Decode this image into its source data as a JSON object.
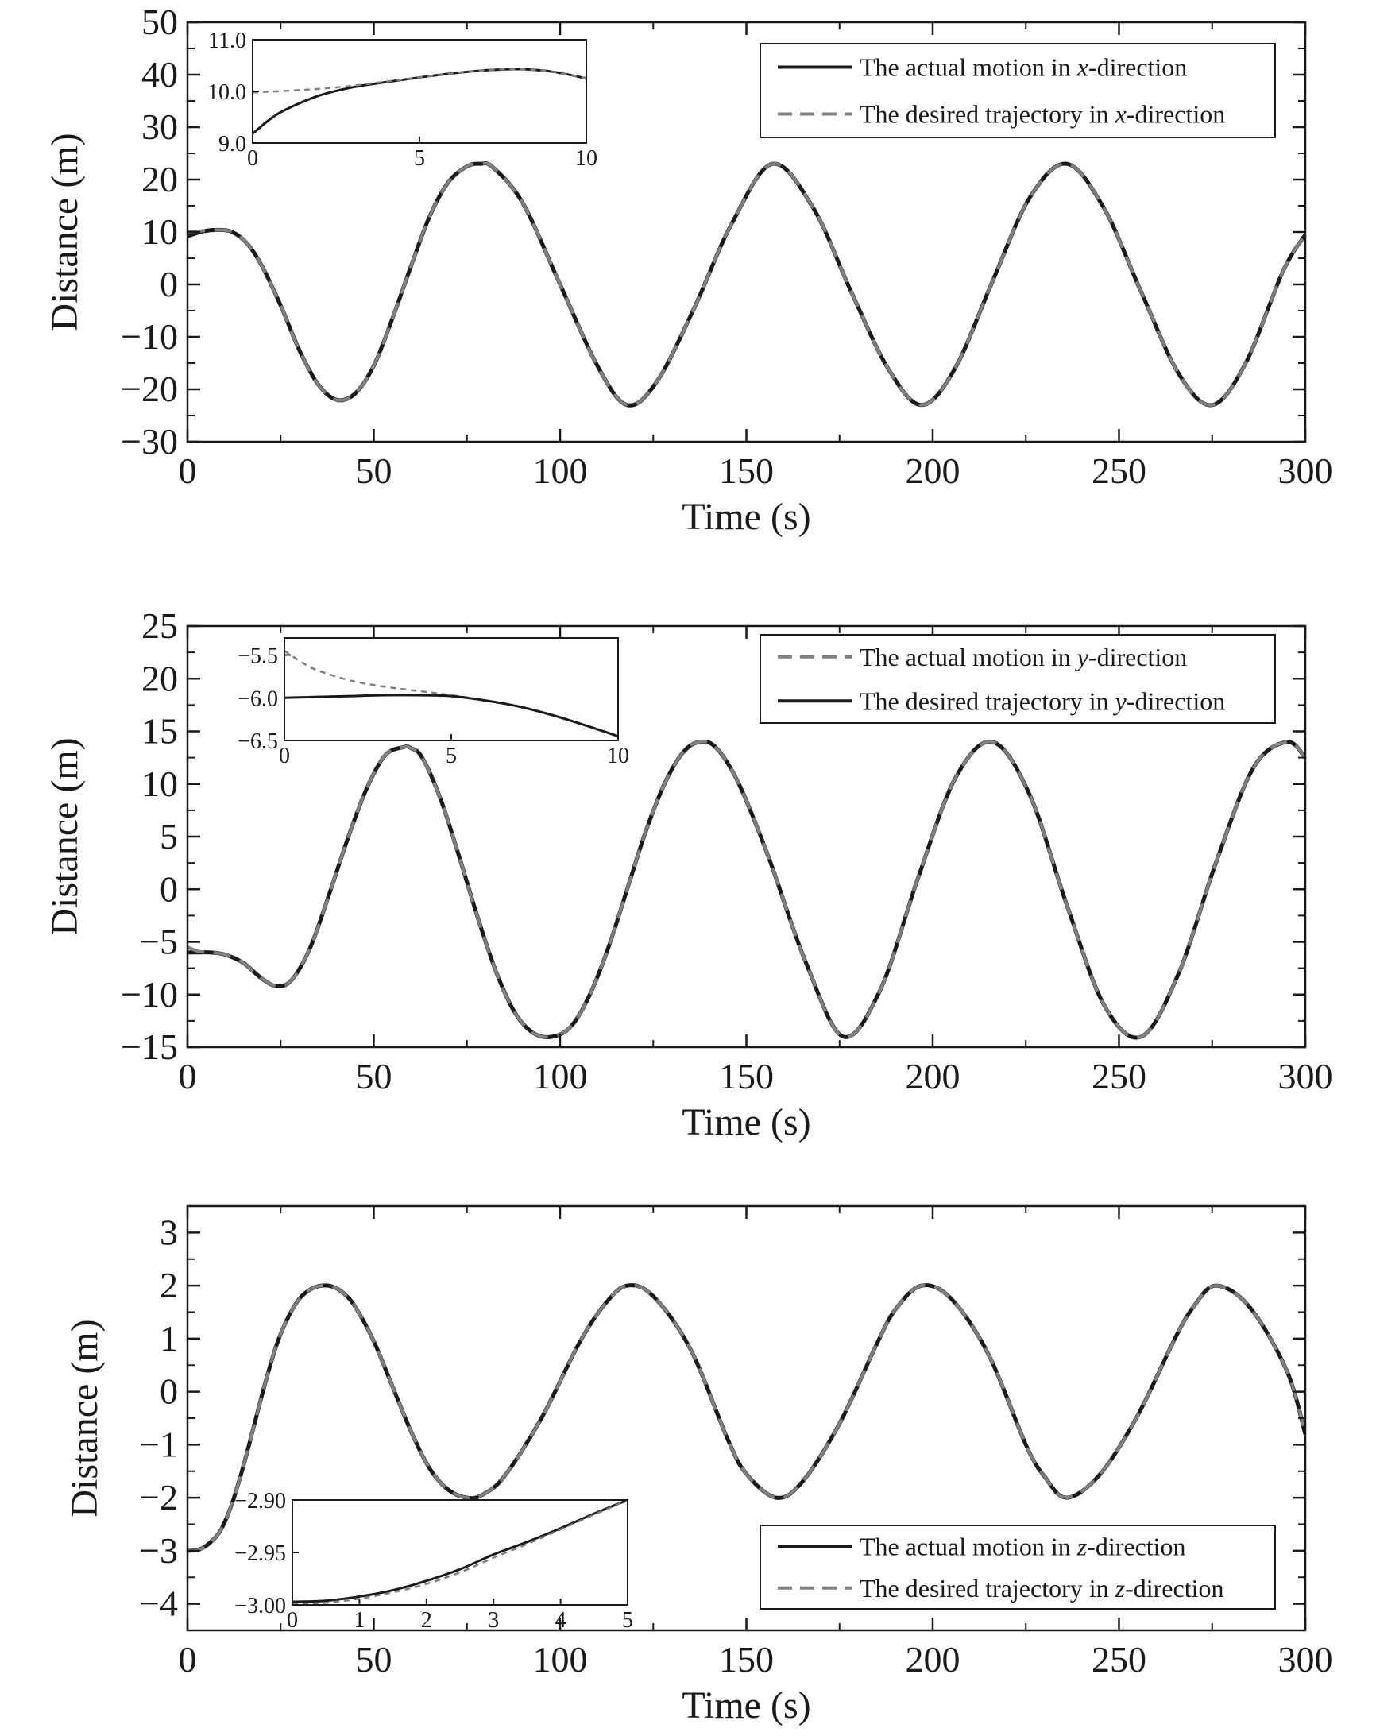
{
  "colors": {
    "actual": "#1a1a1a",
    "desired": "#808080",
    "axis": "#1a1a1a"
  },
  "chart_data": [
    {
      "type": "line",
      "xlabel": "Time (s)",
      "ylabel": "Distance (m)",
      "xlim": [
        0,
        300
      ],
      "ylim": [
        -30,
        50
      ],
      "xticks": [
        0,
        50,
        100,
        150,
        200,
        250,
        300
      ],
      "yticks": [
        -30,
        -20,
        -10,
        0,
        10,
        20,
        30,
        40,
        50
      ],
      "xtick_labels": [
        "0",
        "50",
        "100",
        "150",
        "200",
        "250",
        "300"
      ],
      "ytick_labels": [
        "−30",
        "−20",
        "−10",
        "0",
        "10",
        "20",
        "30",
        "40",
        "50"
      ],
      "legend_position": "top-right",
      "series": [
        {
          "name": "The actual motion in x-direction",
          "legend_prefix": "The actual motion in ",
          "legend_var": "x",
          "legend_suffix": "-direction",
          "style": "solid",
          "x": [
            0,
            4,
            8,
            12,
            16,
            20,
            25,
            30,
            35,
            40,
            45,
            50,
            55,
            60,
            65,
            70,
            75,
            78.5,
            82,
            90,
            100,
            110,
            118,
            126,
            136,
            146,
            157,
            168,
            178,
            188,
            197,
            206,
            216,
            226,
            236,
            246,
            256,
            266,
            275,
            284,
            294,
            300
          ],
          "y": [
            9.2,
            10.1,
            10.4,
            10.0,
            7.8,
            3.5,
            -4.0,
            -12.5,
            -19.0,
            -22.0,
            -20.8,
            -15.5,
            -6.5,
            3.5,
            13.0,
            19.5,
            22.5,
            23.0,
            22.3,
            15.5,
            0.0,
            -15.5,
            -23.0,
            -18.5,
            -4.5,
            11.5,
            23.0,
            14.5,
            -1.2,
            -16.0,
            -23.0,
            -16.0,
            0.5,
            16.5,
            23.0,
            14.5,
            -1.5,
            -17.0,
            -23.0,
            -15.0,
            2.5,
            9.5
          ]
        },
        {
          "name": "The desired trajectory in x-direction",
          "legend_prefix": "The desired trajectory in ",
          "legend_var": "x",
          "legend_suffix": "-direction",
          "style": "dashed",
          "x": [
            0,
            4,
            8,
            12,
            16,
            20,
            25,
            30,
            35,
            40,
            45,
            50,
            55,
            60,
            65,
            70,
            75,
            78.5,
            82,
            90,
            100,
            110,
            118,
            126,
            136,
            146,
            157,
            168,
            178,
            188,
            197,
            206,
            216,
            226,
            236,
            246,
            256,
            266,
            275,
            284,
            294,
            300
          ],
          "y": [
            10.0,
            10.2,
            10.4,
            10.0,
            7.8,
            3.5,
            -4.0,
            -12.5,
            -19.0,
            -22.0,
            -20.8,
            -15.5,
            -6.5,
            3.5,
            13.0,
            19.5,
            22.5,
            23.0,
            22.3,
            15.5,
            0.0,
            -15.5,
            -23.0,
            -18.5,
            -4.5,
            11.5,
            23.0,
            14.5,
            -1.2,
            -16.0,
            -23.0,
            -16.0,
            0.5,
            16.5,
            23.0,
            14.5,
            -1.5,
            -17.0,
            -23.0,
            -15.0,
            2.5,
            9.5
          ]
        }
      ],
      "inset": {
        "xlim": [
          0,
          10
        ],
        "ylim": [
          9.0,
          11.0
        ],
        "xticks": [
          0,
          5,
          10
        ],
        "yticks": [
          9.0,
          10.0,
          11.0
        ],
        "xtick_labels": [
          "0",
          "5",
          "10"
        ],
        "ytick_labels": [
          "9.0",
          "10.0",
          "11.0"
        ],
        "series": [
          {
            "style": "solid",
            "x": [
              0,
              0.5,
              1,
              2,
              3,
              4,
              5,
              6,
              7,
              8,
              9,
              10
            ],
            "y": [
              9.18,
              9.45,
              9.65,
              9.92,
              10.08,
              10.18,
              10.27,
              10.35,
              10.41,
              10.43,
              10.38,
              10.25
            ]
          },
          {
            "style": "dashed",
            "x": [
              0,
              1,
              2,
              3,
              4,
              5,
              6,
              7,
              8,
              9,
              10
            ],
            "y": [
              9.98,
              10.01,
              10.05,
              10.11,
              10.19,
              10.27,
              10.35,
              10.41,
              10.43,
              10.38,
              10.25
            ]
          }
        ]
      }
    },
    {
      "type": "line",
      "xlabel": "Time (s)",
      "ylabel": "Distance (m)",
      "xlim": [
        0,
        300
      ],
      "ylim": [
        -15,
        25
      ],
      "xticks": [
        0,
        50,
        100,
        150,
        200,
        250,
        300
      ],
      "yticks": [
        -15,
        -10,
        -5,
        0,
        5,
        10,
        15,
        20,
        25
      ],
      "xtick_labels": [
        "0",
        "50",
        "100",
        "150",
        "200",
        "250",
        "300"
      ],
      "ytick_labels": [
        "−15",
        "−10",
        "−5",
        "0",
        "5",
        "10",
        "15",
        "20",
        "25"
      ],
      "legend_position": "top-right",
      "series": [
        {
          "name": "The actual motion in y-direction",
          "legend_prefix": "The actual motion in ",
          "legend_var": "y",
          "legend_suffix": "-direction",
          "style": "dashed",
          "x": [
            0,
            3,
            6,
            10,
            15,
            20,
            24,
            28,
            33,
            38,
            43,
            48,
            53,
            58,
            60,
            63,
            68,
            73,
            78,
            83,
            88,
            93,
            98,
            103,
            108,
            113,
            118,
            123,
            128,
            133,
            137.5,
            142,
            148,
            156,
            166,
            176,
            186,
            196,
            206,
            216,
            226,
            236,
            246,
            256,
            266,
            276,
            286,
            295,
            300
          ],
          "y": [
            -5.5,
            -5.9,
            -6.0,
            -6.2,
            -7.0,
            -8.5,
            -9.2,
            -8.6,
            -5.5,
            -0.5,
            4.8,
            9.5,
            12.7,
            13.5,
            13.4,
            12.5,
            8.5,
            3.0,
            -2.8,
            -8.0,
            -11.8,
            -13.7,
            -14.0,
            -13.0,
            -10.0,
            -5.5,
            0.0,
            5.5,
            10.0,
            13.0,
            14.0,
            13.4,
            10.0,
            3.0,
            -7.0,
            -14.0,
            -9.5,
            1.0,
            10.5,
            14.0,
            9.0,
            -1.5,
            -11.0,
            -14.0,
            -8.0,
            2.5,
            11.5,
            14.0,
            12.5
          ]
        },
        {
          "name": "The desired trajectory in y-direction",
          "legend_prefix": "The desired trajectory in ",
          "legend_var": "y",
          "legend_suffix": "-direction",
          "style": "solid",
          "x": [
            0,
            3,
            6,
            10,
            15,
            20,
            24,
            28,
            33,
            38,
            43,
            48,
            53,
            58,
            60,
            63,
            68,
            73,
            78,
            83,
            88,
            93,
            98,
            103,
            108,
            113,
            118,
            123,
            128,
            133,
            137.5,
            142,
            148,
            156,
            166,
            176,
            186,
            196,
            206,
            216,
            226,
            236,
            246,
            256,
            266,
            276,
            286,
            295,
            300
          ],
          "y": [
            -6.0,
            -6.0,
            -6.0,
            -6.2,
            -7.0,
            -8.5,
            -9.2,
            -8.6,
            -5.5,
            -0.5,
            4.8,
            9.5,
            12.7,
            13.5,
            13.4,
            12.5,
            8.5,
            3.0,
            -2.8,
            -8.0,
            -11.8,
            -13.7,
            -14.0,
            -13.0,
            -10.0,
            -5.5,
            0.0,
            5.5,
            10.0,
            13.0,
            14.0,
            13.4,
            10.0,
            3.0,
            -7.0,
            -14.0,
            -9.5,
            1.0,
            10.5,
            14.0,
            9.0,
            -1.5,
            -11.0,
            -14.0,
            -8.0,
            2.5,
            11.5,
            14.0,
            12.5
          ]
        }
      ],
      "inset": {
        "xlim": [
          0,
          10
        ],
        "ylim": [
          -6.5,
          -5.3
        ],
        "xticks": [
          0,
          5,
          10
        ],
        "yticks": [
          -6.5,
          -6.0,
          -5.5
        ],
        "xtick_labels": [
          "0",
          "5",
          "10"
        ],
        "ytick_labels": [
          "−6.5",
          "−6.0",
          "−5.5"
        ],
        "series": [
          {
            "style": "dashed",
            "x": [
              0,
              0.5,
              1,
              2,
              3,
              4,
              5,
              6,
              7,
              8,
              9,
              10
            ],
            "y": [
              -5.45,
              -5.58,
              -5.68,
              -5.8,
              -5.87,
              -5.92,
              -5.97,
              -6.03,
              -6.1,
              -6.2,
              -6.32,
              -6.45
            ]
          },
          {
            "style": "solid",
            "x": [
              0,
              1,
              2,
              3,
              4,
              5,
              6,
              7,
              8,
              9,
              10
            ],
            "y": [
              -6.0,
              -5.99,
              -5.98,
              -5.97,
              -5.97,
              -5.98,
              -6.03,
              -6.1,
              -6.2,
              -6.32,
              -6.45
            ]
          }
        ]
      }
    },
    {
      "type": "line",
      "xlabel": "Time (s)",
      "ylabel": "Distance (m)",
      "xlim": [
        0,
        300
      ],
      "ylim": [
        -4.5,
        3.5
      ],
      "xticks": [
        0,
        50,
        100,
        150,
        200,
        250,
        300
      ],
      "yticks": [
        -4,
        -3,
        -2,
        -1,
        0,
        1,
        2,
        3
      ],
      "xtick_labels": [
        "0",
        "50",
        "100",
        "150",
        "200",
        "250",
        "300"
      ],
      "ytick_labels": [
        "−4",
        "−3",
        "−2",
        "−1",
        "0",
        "1",
        "2",
        "3"
      ],
      "legend_position": "bottom-right",
      "series": [
        {
          "name": "The actual motion in z-direction",
          "legend_prefix": "The actual motion in ",
          "legend_var": "z",
          "legend_suffix": "-direction",
          "style": "solid",
          "x": [
            0,
            3,
            6,
            9,
            12,
            15,
            18,
            21,
            24,
            27,
            30,
            33,
            36,
            39,
            42,
            45,
            50,
            55,
            60,
            65,
            70,
            75,
            79,
            85,
            95,
            105,
            112,
            118,
            125,
            135,
            145,
            150,
            158,
            165,
            175,
            185,
            190,
            197,
            205,
            215,
            225,
            230,
            236,
            245,
            255,
            265,
            270,
            276,
            285,
            295,
            300
          ],
          "y": [
            -3.0,
            -2.98,
            -2.85,
            -2.6,
            -2.1,
            -1.4,
            -0.6,
            0.2,
            0.9,
            1.4,
            1.75,
            1.93,
            2.0,
            1.98,
            1.85,
            1.6,
            0.95,
            0.1,
            -0.75,
            -1.45,
            -1.85,
            -2.0,
            -1.95,
            -1.6,
            -0.5,
            0.9,
            1.65,
            2.0,
            1.8,
            0.8,
            -0.9,
            -1.55,
            -2.0,
            -1.7,
            -0.6,
            0.9,
            1.55,
            2.0,
            1.75,
            0.7,
            -1.0,
            -1.6,
            -2.0,
            -1.55,
            -0.45,
            1.0,
            1.6,
            2.0,
            1.6,
            0.4,
            -0.8
          ]
        },
        {
          "name": "The desired trajectory in z-direction",
          "legend_prefix": "The desired trajectory in ",
          "legend_var": "z",
          "legend_suffix": "-direction",
          "style": "dashed",
          "x": [
            0,
            3,
            6,
            9,
            12,
            15,
            18,
            21,
            24,
            27,
            30,
            33,
            36,
            39,
            42,
            45,
            50,
            55,
            60,
            65,
            70,
            75,
            79,
            85,
            95,
            105,
            112,
            118,
            125,
            135,
            145,
            150,
            158,
            165,
            175,
            185,
            190,
            197,
            205,
            215,
            225,
            230,
            236,
            245,
            255,
            265,
            270,
            276,
            285,
            295,
            300
          ],
          "y": [
            -3.0,
            -2.98,
            -2.85,
            -2.6,
            -2.1,
            -1.4,
            -0.6,
            0.2,
            0.9,
            1.4,
            1.75,
            1.93,
            2.0,
            1.98,
            1.85,
            1.6,
            0.95,
            0.1,
            -0.75,
            -1.45,
            -1.85,
            -2.0,
            -1.95,
            -1.6,
            -0.5,
            0.9,
            1.65,
            2.0,
            1.8,
            0.8,
            -0.9,
            -1.55,
            -2.0,
            -1.7,
            -0.6,
            0.9,
            1.55,
            2.0,
            1.75,
            0.7,
            -1.0,
            -1.6,
            -2.0,
            -1.55,
            -0.45,
            1.0,
            1.6,
            2.0,
            1.6,
            0.4,
            -0.8
          ]
        }
      ],
      "inset": {
        "xlim": [
          0,
          5
        ],
        "ylim": [
          -3.0,
          -2.9
        ],
        "xticks": [
          0,
          1,
          2,
          3,
          4,
          5
        ],
        "yticks": [
          -3.0,
          -2.95,
          -2.9
        ],
        "xtick_labels": [
          "0",
          "1",
          "2",
          "3",
          "4",
          "5"
        ],
        "ytick_labels": [
          "−3.00",
          "−2.95",
          "−2.90"
        ],
        "series": [
          {
            "style": "solid",
            "x": [
              0,
              0.5,
              1,
              1.5,
              2,
              2.5,
              3,
              3.5,
              4,
              4.5,
              5
            ],
            "y": [
              -2.997,
              -2.996,
              -2.992,
              -2.986,
              -2.977,
              -2.966,
              -2.952,
              -2.94,
              -2.927,
              -2.913,
              -2.9
            ]
          },
          {
            "style": "dashed",
            "x": [
              0,
              0.5,
              1,
              1.5,
              2,
              2.5,
              3,
              3.5,
              4,
              4.5,
              5
            ],
            "y": [
              -2.999,
              -2.998,
              -2.994,
              -2.988,
              -2.98,
              -2.969,
              -2.955,
              -2.942,
              -2.928,
              -2.914,
              -2.9
            ]
          }
        ]
      }
    }
  ]
}
